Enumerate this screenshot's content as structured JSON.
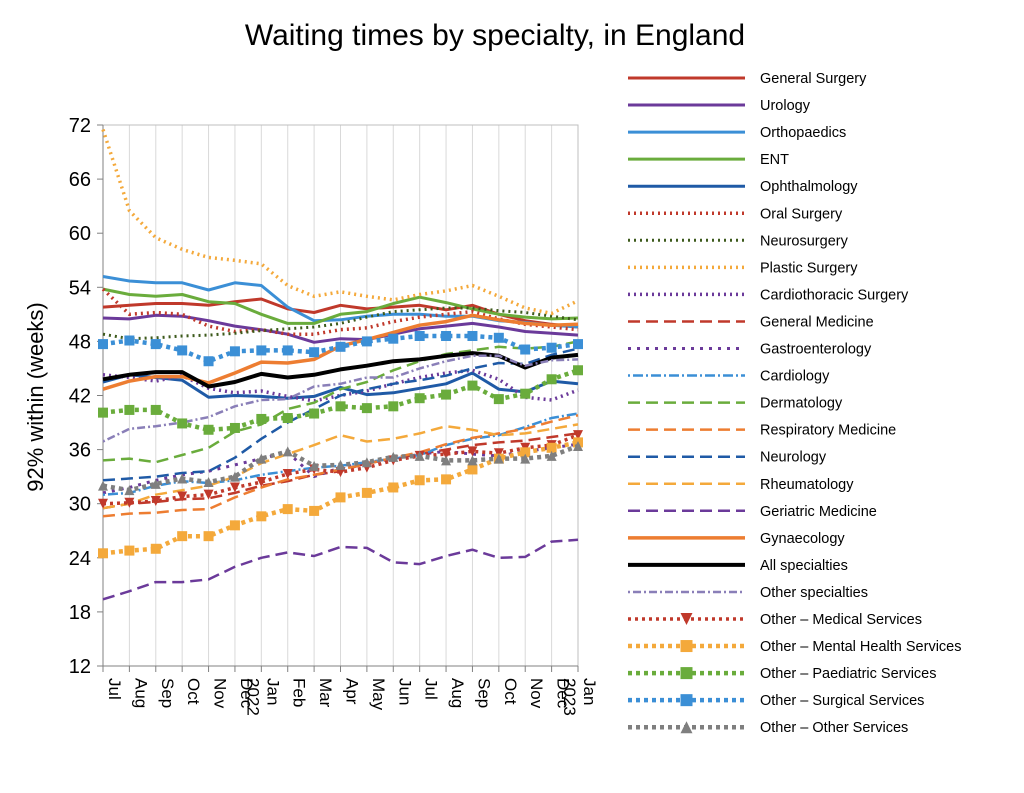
{
  "chart_data": {
    "type": "line",
    "title": "Waiting times by specialty, in England",
    "ylabel": "92% within (weeks)",
    "xlabel": "",
    "ylim": [
      12,
      72
    ],
    "yticks": [
      12,
      18,
      24,
      30,
      36,
      42,
      48,
      54,
      60,
      66,
      72
    ],
    "grid": "vertical",
    "legend_position": "right",
    "x": [
      "Jul",
      "Aug",
      "Sep",
      "Oct",
      "Nov",
      "Dec",
      "Jan 2022",
      "Feb",
      "Mar",
      "Apr",
      "May",
      "Jun",
      "Jul",
      "Aug",
      "Sep",
      "Oct",
      "Nov",
      "Dec",
      "Jan 2023"
    ],
    "series": [
      {
        "name": "General  Surgery",
        "color": "#c0392b",
        "dash": "",
        "width": 3,
        "marker": "none",
        "values": [
          51.8,
          52.0,
          52.2,
          52.2,
          52.0,
          52.4,
          52.7,
          51.6,
          51.2,
          52.0,
          51.6,
          51.8,
          52.0,
          51.5,
          52.0,
          51.0,
          50.3,
          49.9,
          49.6
        ]
      },
      {
        "name": "Urology",
        "color": "#6b3a9a",
        "dash": "",
        "width": 3,
        "marker": "none",
        "values": [
          50.6,
          50.5,
          50.9,
          50.8,
          50.3,
          49.7,
          49.3,
          48.8,
          47.9,
          48.3,
          48.2,
          48.8,
          49.4,
          49.7,
          50.0,
          49.6,
          49.1,
          48.9,
          48.7
        ]
      },
      {
        "name": "Orthopaedics",
        "color": "#3b8fd6",
        "dash": "",
        "width": 3,
        "marker": "none",
        "values": [
          55.2,
          54.7,
          54.5,
          54.5,
          53.7,
          54.5,
          54.2,
          51.8,
          50.3,
          50.4,
          50.8,
          51.0,
          51.0,
          50.8,
          50.8,
          50.3,
          50.1,
          49.8,
          49.6
        ]
      },
      {
        "name": "ENT",
        "color": "#6aac3c",
        "dash": "",
        "width": 3,
        "marker": "none",
        "values": [
          53.8,
          53.2,
          53.0,
          53.2,
          52.4,
          52.2,
          51.0,
          50.0,
          50.0,
          51.0,
          51.3,
          52.2,
          52.9,
          52.3,
          51.6,
          51.0,
          50.7,
          50.5,
          50.6
        ]
      },
      {
        "name": "Ophthalmology",
        "color": "#1f5aa6",
        "dash": "",
        "width": 3,
        "marker": "none",
        "values": [
          43.5,
          44.3,
          44.0,
          43.7,
          41.8,
          42.0,
          41.9,
          41.7,
          41.9,
          42.9,
          42.1,
          42.3,
          42.8,
          43.3,
          44.5,
          42.7,
          42.4,
          43.6,
          43.3
        ]
      },
      {
        "name": "Oral Surgery",
        "color": "#c0392b",
        "dash": "2 4",
        "width": 3.5,
        "marker": "none",
        "values": [
          53.8,
          51.0,
          51.2,
          51.0,
          49.7,
          49.1,
          49.3,
          48.8,
          48.8,
          49.3,
          49.5,
          50.2,
          50.7,
          51.0,
          51.3,
          50.5,
          49.9,
          49.6,
          49.3
        ]
      },
      {
        "name": "Neurosurgery",
        "color": "#3d5a1c",
        "dash": "2 4",
        "width": 3,
        "marker": "none",
        "values": [
          48.8,
          48.3,
          48.4,
          48.6,
          48.7,
          48.9,
          49.2,
          49.4,
          49.6,
          50.0,
          50.7,
          51.3,
          51.5,
          51.7,
          51.7,
          51.4,
          51.2,
          50.8,
          50.4
        ]
      },
      {
        "name": "Plastic  Surgery",
        "color": "#f4a93b",
        "dash": "2 4",
        "width": 3.5,
        "marker": "none",
        "values": [
          71.5,
          62.5,
          59.5,
          58.2,
          57.3,
          57.0,
          56.6,
          54.2,
          53.0,
          53.5,
          53.0,
          52.6,
          53.2,
          53.6,
          54.2,
          53.0,
          51.7,
          51.1,
          52.5
        ]
      },
      {
        "name": "Cardiothoracic  Surgery",
        "color": "#6b3a9a",
        "dash": "2 4",
        "width": 3.5,
        "marker": "none",
        "values": [
          44.3,
          44.0,
          43.6,
          44.2,
          42.8,
          42.3,
          42.5,
          41.9,
          41.4,
          42.0,
          42.5,
          43.3,
          44.0,
          44.5,
          44.8,
          43.8,
          41.8,
          41.5,
          42.6
        ]
      },
      {
        "name": "General Medicine",
        "color": "#c0392b",
        "dash": "12 6",
        "width": 2.5,
        "marker": "none",
        "values": [
          29.5,
          30.0,
          30.2,
          30.5,
          30.6,
          31.2,
          32.0,
          32.5,
          33.2,
          33.6,
          34.5,
          35.0,
          35.5,
          36.0,
          36.5,
          36.8,
          37.0,
          37.4,
          37.8
        ]
      },
      {
        "name": "Gastroenterology",
        "color": "#6b3a9a",
        "dash": "3 6",
        "width": 3,
        "marker": "none",
        "values": [
          31.2,
          31.8,
          32.6,
          33.2,
          33.6,
          34.3,
          35.0,
          35.7,
          33.0,
          34.0,
          34.5,
          35.0,
          35.5,
          35.8,
          35.5,
          35.3,
          35.8,
          36.2,
          36.6
        ]
      },
      {
        "name": "Cardiology",
        "color": "#3b8fd6",
        "dash": "2 3 10 3",
        "width": 2.5,
        "marker": "none",
        "values": [
          31.0,
          31.2,
          32.0,
          32.5,
          32.3,
          32.6,
          33.2,
          33.6,
          34.0,
          34.2,
          34.6,
          35.0,
          35.4,
          36.5,
          37.2,
          37.6,
          38.5,
          39.5,
          40.0
        ]
      },
      {
        "name": "Dermatology",
        "color": "#6aac3c",
        "dash": "12 6",
        "width": 2.5,
        "marker": "none",
        "values": [
          34.8,
          35.0,
          34.6,
          35.4,
          36.2,
          38.0,
          38.8,
          40.5,
          41.2,
          42.7,
          43.5,
          44.8,
          45.8,
          46.6,
          47.0,
          47.4,
          47.2,
          47.4,
          48.0
        ]
      },
      {
        "name": "Respiratory  Medicine",
        "color": "#ed7d31",
        "dash": "12 6",
        "width": 2.5,
        "marker": "none",
        "values": [
          28.6,
          28.9,
          29.0,
          29.3,
          29.4,
          30.7,
          31.8,
          32.7,
          33.2,
          33.8,
          34.4,
          35.1,
          35.7,
          36.6,
          37.3,
          37.8,
          38.3,
          39.1,
          39.8
        ]
      },
      {
        "name": "Neurology",
        "color": "#1f5aa6",
        "dash": "12 6",
        "width": 2.5,
        "marker": "none",
        "values": [
          32.6,
          32.8,
          33.0,
          33.4,
          33.6,
          35.1,
          37.2,
          39.0,
          40.5,
          42.0,
          42.7,
          43.3,
          43.7,
          44.2,
          45.0,
          45.6,
          45.5,
          46.5,
          47.2
        ]
      },
      {
        "name": "Rheumatology",
        "color": "#f4a93b",
        "dash": "12 6",
        "width": 2.5,
        "marker": "none",
        "values": [
          29.5,
          30.0,
          31.0,
          31.5,
          32.0,
          33.0,
          34.5,
          35.5,
          36.5,
          37.6,
          36.9,
          37.2,
          37.8,
          38.6,
          38.2,
          37.6,
          37.8,
          38.3,
          38.8
        ]
      },
      {
        "name": "Geriatric  Medicine",
        "color": "#6b3a9a",
        "dash": "12 6",
        "width": 2.5,
        "marker": "none",
        "values": [
          19.4,
          20.3,
          21.3,
          21.3,
          21.6,
          23.0,
          24.0,
          24.6,
          24.2,
          25.2,
          25.1,
          23.5,
          23.3,
          24.2,
          24.9,
          24.0,
          24.1,
          25.8,
          26.0
        ]
      },
      {
        "name": "Gynaecology",
        "color": "#ed7d31",
        "dash": "",
        "width": 3.5,
        "marker": "none",
        "values": [
          42.7,
          43.6,
          44.1,
          44.1,
          43.4,
          44.5,
          45.7,
          45.6,
          46.0,
          47.5,
          48.2,
          49.0,
          49.8,
          50.2,
          50.9,
          50.4,
          50.0,
          49.8,
          49.9
        ]
      },
      {
        "name": "All  specialties",
        "color": "#000000",
        "dash": "",
        "width": 4,
        "marker": "none",
        "values": [
          43.8,
          44.3,
          44.6,
          44.6,
          43.0,
          43.5,
          44.4,
          44.0,
          44.3,
          44.9,
          45.3,
          45.8,
          46.0,
          46.4,
          46.7,
          46.4,
          45.1,
          46.2,
          46.5
        ]
      },
      {
        "name": "Other  specialties",
        "color": "#8a7fb8",
        "dash": "2 3 8 3",
        "width": 2.5,
        "marker": "none",
        "values": [
          36.9,
          38.3,
          38.6,
          39.0,
          39.6,
          40.8,
          41.5,
          41.6,
          43.0,
          43.3,
          44.0,
          44.0,
          45.0,
          45.8,
          46.4,
          46.4,
          45.3,
          45.9,
          46.0
        ]
      },
      {
        "name": "Other – Medical Services",
        "color": "#c0392b",
        "dash": "3 4",
        "width": 3.5,
        "marker": "triangle-down",
        "values": [
          30.0,
          30.1,
          30.3,
          30.8,
          31.0,
          31.8,
          32.4,
          33.3,
          33.8,
          33.5,
          34.0,
          34.8,
          35.3,
          35.5,
          35.8,
          35.6,
          36.2,
          36.5,
          37.6
        ]
      },
      {
        "name": "Other – Mental Health Services",
        "color": "#f4a93b",
        "dash": "4 4",
        "width": 4.5,
        "marker": "square",
        "values": [
          24.5,
          24.8,
          25.0,
          26.4,
          26.4,
          27.6,
          28.6,
          29.4,
          29.2,
          30.7,
          31.2,
          31.8,
          32.6,
          32.7,
          33.8,
          35.0,
          35.7,
          36.2,
          36.8
        ]
      },
      {
        "name": "Other – Paediatric Services",
        "color": "#6aac3c",
        "dash": "4 4",
        "width": 4.5,
        "marker": "square",
        "values": [
          40.1,
          40.4,
          40.4,
          38.9,
          38.2,
          38.4,
          39.4,
          39.5,
          40.0,
          40.8,
          40.6,
          40.8,
          41.7,
          42.1,
          43.1,
          41.6,
          42.2,
          43.8,
          44.8
        ]
      },
      {
        "name": "Other – Surgical Services",
        "color": "#3b8fd6",
        "dash": "4 4",
        "width": 4.5,
        "marker": "square",
        "values": [
          47.7,
          48.1,
          47.7,
          47.0,
          45.8,
          46.9,
          47.0,
          47.0,
          46.8,
          47.4,
          48.0,
          48.3,
          48.6,
          48.6,
          48.6,
          48.4,
          47.1,
          47.3,
          47.7
        ]
      },
      {
        "name": "Other – Other Services",
        "color": "#7f7f7f",
        "dash": "4 4",
        "width": 4.5,
        "marker": "triangle-up",
        "values": [
          32.0,
          31.5,
          32.2,
          32.8,
          32.4,
          33.0,
          35.0,
          35.8,
          34.2,
          34.3,
          34.6,
          35.2,
          35.3,
          34.8,
          34.8,
          35.0,
          35.0,
          35.3,
          36.4
        ]
      }
    ]
  }
}
